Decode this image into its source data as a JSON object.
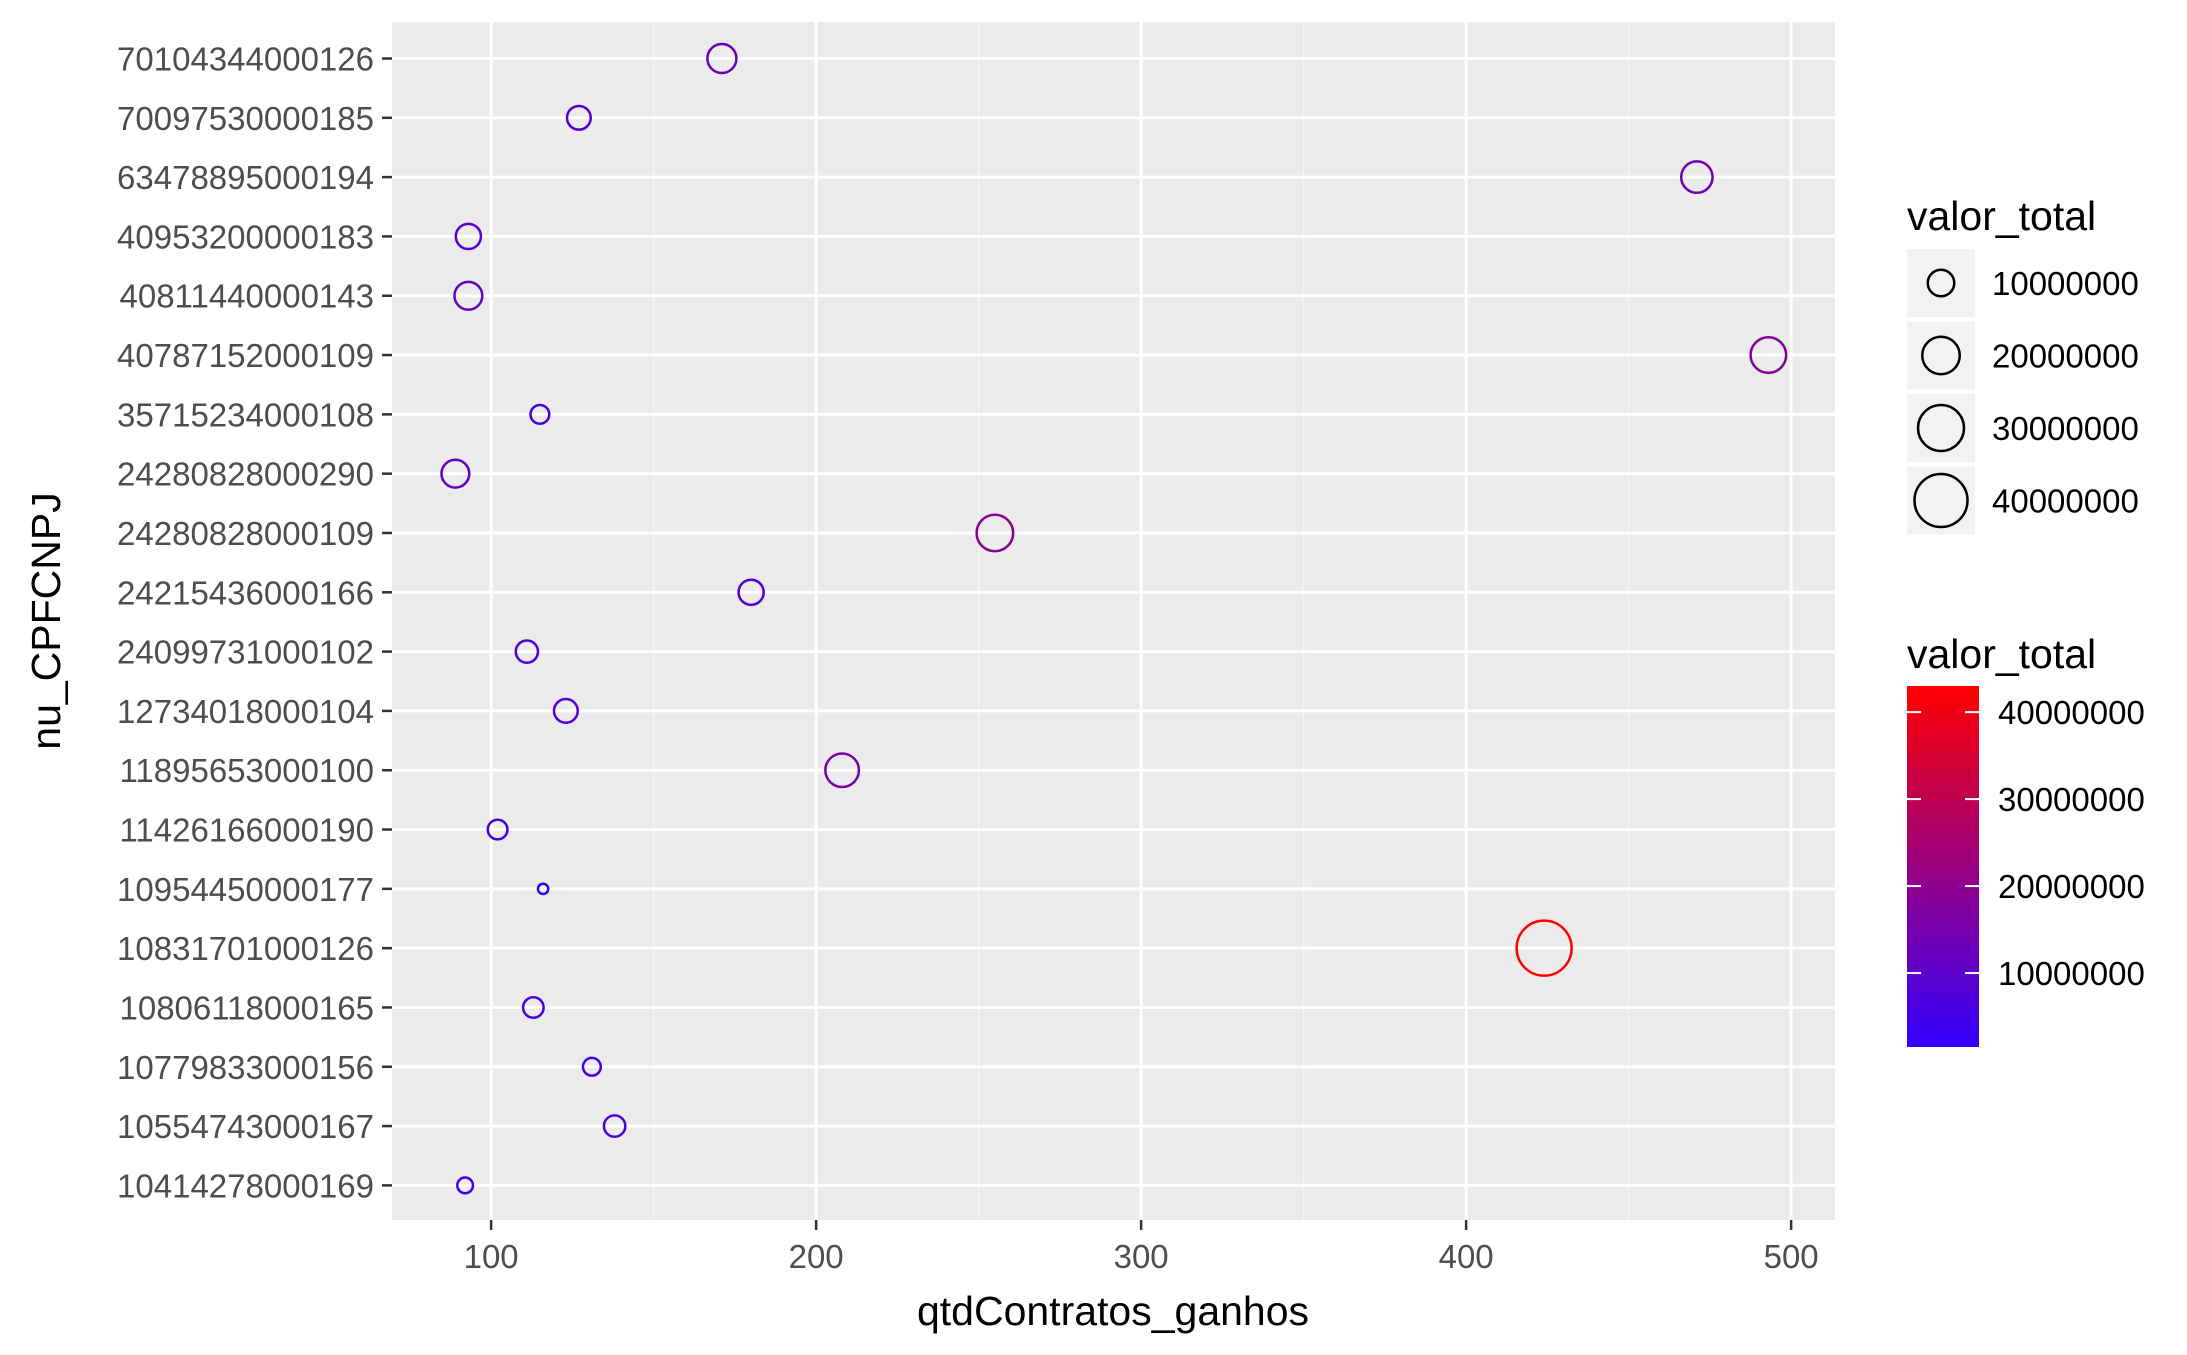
{
  "chart_data": {
    "type": "scatter",
    "xlabel": "qtdContratos_ganhos",
    "ylabel": "nu_CPFCNPJ",
    "xlim": [
      69.5,
      513.5
    ],
    "x_ticks": [
      100,
      200,
      300,
      400,
      500
    ],
    "x_minor": [
      150,
      250,
      350,
      450
    ],
    "grid": true,
    "categories": [
      "10414278000169",
      "10554743000167",
      "10779833000156",
      "10806118000165",
      "10831701000126",
      "10954450000177",
      "11426166000190",
      "11895653000100",
      "12734018000104",
      "24099731000102",
      "24215436000166",
      "24280828000109",
      "24280828000290",
      "35715234000108",
      "40787152000109",
      "40811440000143",
      "40953200000183",
      "63478895000194",
      "70097530000185",
      "70104344000126"
    ],
    "points": [
      {
        "y": "70104344000126",
        "x": 171,
        "valor_total": 12000000
      },
      {
        "y": "70097530000185",
        "x": 127,
        "valor_total": 8000000
      },
      {
        "y": "63478895000194",
        "x": 471,
        "valor_total": 14000000
      },
      {
        "y": "40953200000183",
        "x": 93,
        "valor_total": 9000000
      },
      {
        "y": "40811440000143",
        "x": 93,
        "valor_total": 11000000
      },
      {
        "y": "40787152000109",
        "x": 493,
        "valor_total": 18000000
      },
      {
        "y": "35715234000108",
        "x": 115,
        "valor_total": 5000000
      },
      {
        "y": "24280828000290",
        "x": 89,
        "valor_total": 11000000
      },
      {
        "y": "24280828000109",
        "x": 255,
        "valor_total": 19000000
      },
      {
        "y": "24215436000166",
        "x": 180,
        "valor_total": 9000000
      },
      {
        "y": "24099731000102",
        "x": 111,
        "valor_total": 7000000
      },
      {
        "y": "12734018000104",
        "x": 123,
        "valor_total": 8000000
      },
      {
        "y": "11895653000100",
        "x": 208,
        "valor_total": 16000000
      },
      {
        "y": "11426166000190",
        "x": 102,
        "valor_total": 5500000
      },
      {
        "y": "10954450000177",
        "x": 116,
        "valor_total": 1500000
      },
      {
        "y": "10831701000126",
        "x": 424,
        "valor_total": 43000000
      },
      {
        "y": "10806118000165",
        "x": 113,
        "valor_total": 6000000
      },
      {
        "y": "10779833000156",
        "x": 131,
        "valor_total": 4500000
      },
      {
        "y": "10554743000167",
        "x": 138,
        "valor_total": 6500000
      },
      {
        "y": "10414278000169",
        "x": 92,
        "valor_total": 3500000
      }
    ],
    "size_legend": {
      "title": "valor_total",
      "values": [
        10000000,
        20000000,
        30000000,
        40000000
      ],
      "labels": [
        "10000000",
        "20000000",
        "30000000",
        "40000000"
      ]
    },
    "color_legend": {
      "title": "valor_total",
      "low_color": "#3300ff",
      "high_color": "#ff0000",
      "domain": [
        1500000,
        43000000
      ],
      "ticks": [
        10000000,
        20000000,
        30000000,
        40000000
      ],
      "labels": [
        "10000000",
        "20000000",
        "30000000",
        "40000000"
      ]
    },
    "colors": {
      "panel_background": "#ebebeb",
      "grid_major": "#ffffff",
      "grid_minor": "#f5f5f5"
    }
  }
}
